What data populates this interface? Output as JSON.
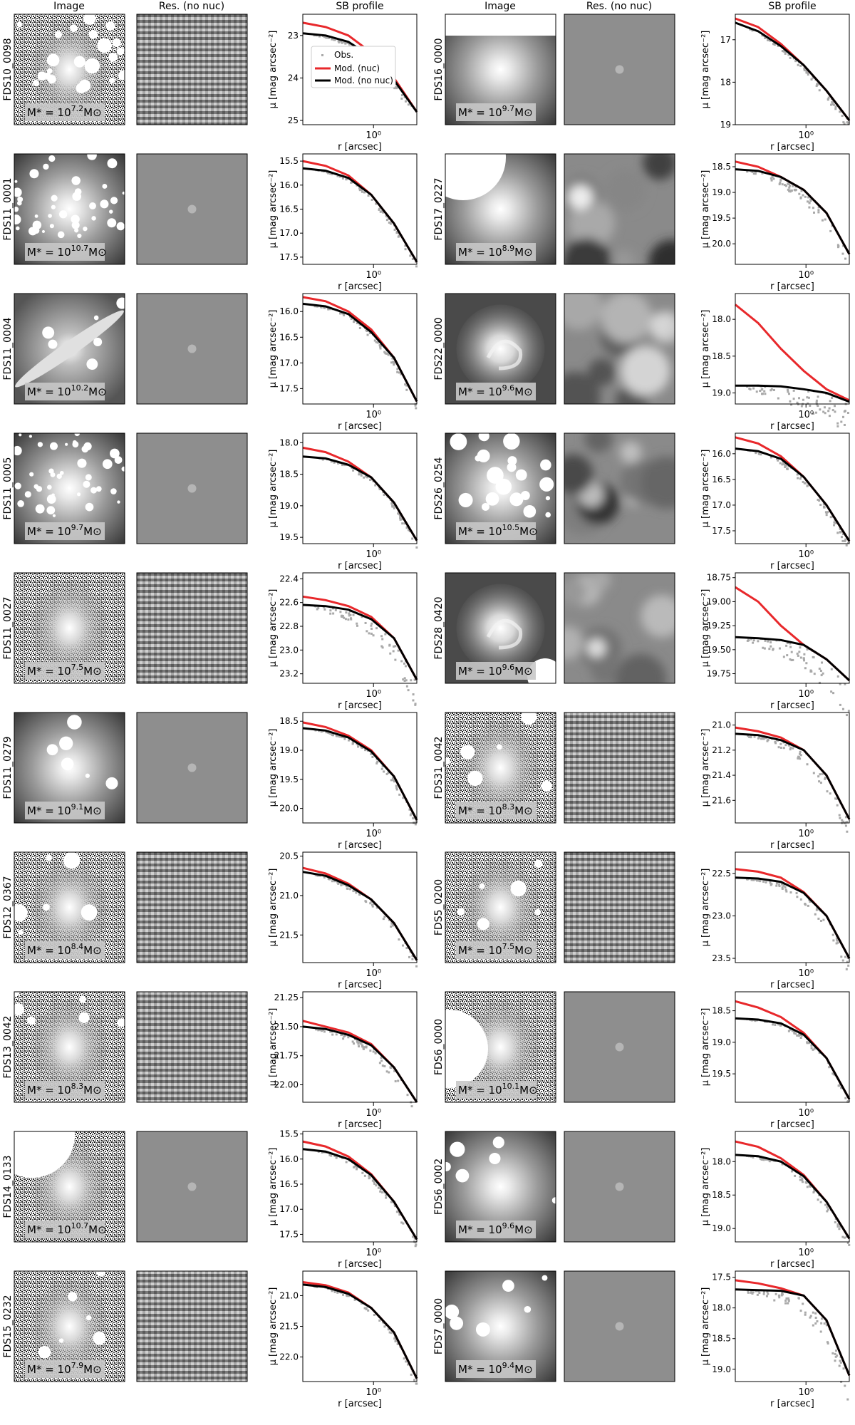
{
  "headers": [
    "Image",
    "Res. (no nuc)",
    "SB profile",
    "Image",
    "Res. (no nuc)",
    "SB profile"
  ],
  "axis_labels": {
    "xlabel": "r [arcsec]",
    "ylabel": "μ [mag arcsec⁻²]",
    "xtick": "10⁰"
  },
  "legend": {
    "obs": "Obs.",
    "nuc": "Mod. (nuc)",
    "nonuc": "Mod. (no nuc)"
  },
  "colors": {
    "obs": "#a9a9a9",
    "nuc": "#e8282b",
    "nonuc": "#000000"
  },
  "galaxies": [
    {
      "id": "FDS10_0098",
      "mass_prefix": "M* = 10",
      "mass_exp": "7.2",
      "mass_suffix": "M⊙",
      "texture": "noisy",
      "mask": "scattered",
      "res": "noisy"
    },
    {
      "id": "FDS16_0000",
      "mass_prefix": "M* = 10",
      "mass_exp": "9.7",
      "mass_suffix": "M⊙",
      "texture": "smooth",
      "mask": "band",
      "res": "smooth"
    },
    {
      "id": "FDS11_0001",
      "mass_prefix": "M* = 10",
      "mass_exp": "10.7",
      "mass_suffix": "M⊙",
      "texture": "smooth",
      "mask": "many",
      "res": "smooth"
    },
    {
      "id": "FDS17_0227",
      "mass_prefix": "M* = 10",
      "mass_exp": "8.9",
      "mass_suffix": "M⊙",
      "texture": "smooth",
      "mask": "bigcorner",
      "res": "blotchy"
    },
    {
      "id": "FDS11_0004",
      "mass_prefix": "M* = 10",
      "mass_exp": "10.2",
      "mass_suffix": "M⊙",
      "texture": "edgeon",
      "mask": "few",
      "res": "smooth"
    },
    {
      "id": "FDS22_0000",
      "mass_prefix": "M* = 10",
      "mass_exp": "9.6",
      "mass_suffix": "M⊙",
      "texture": "spiral",
      "mask": "none",
      "res": "blotchy"
    },
    {
      "id": "FDS11_0005",
      "mass_prefix": "M* = 10",
      "mass_exp": "9.7",
      "mass_suffix": "M⊙",
      "texture": "smooth",
      "mask": "many",
      "res": "smooth"
    },
    {
      "id": "FDS26_0254",
      "mass_prefix": "M* = 10",
      "mass_exp": "10.5",
      "mass_suffix": "M⊙",
      "texture": "smooth",
      "mask": "scattered",
      "res": "blotchy"
    },
    {
      "id": "FDS11_0027",
      "mass_prefix": "M* = 10",
      "mass_exp": "7.5",
      "mass_suffix": "M⊙",
      "texture": "noisy",
      "mask": "none",
      "res": "noisy"
    },
    {
      "id": "FDS28_0420",
      "mass_prefix": "M* = 10",
      "mass_exp": "9.6",
      "mass_suffix": "M⊙",
      "texture": "spiral",
      "mask": "corner",
      "res": "blotchy"
    },
    {
      "id": "FDS11_0279",
      "mass_prefix": "M* = 10",
      "mass_exp": "9.1",
      "mass_suffix": "M⊙",
      "texture": "smooth",
      "mask": "few",
      "res": "smooth"
    },
    {
      "id": "FDS31_0042",
      "mass_prefix": "M* = 10",
      "mass_exp": "8.3",
      "mass_suffix": "M⊙",
      "texture": "noisy",
      "mask": "few",
      "res": "noisy"
    },
    {
      "id": "FDS12_0367",
      "mass_prefix": "M* = 10",
      "mass_exp": "8.4",
      "mass_suffix": "M⊙",
      "texture": "noisy",
      "mask": "few",
      "res": "noisy"
    },
    {
      "id": "FDS5_0200",
      "mass_prefix": "M* = 10",
      "mass_exp": "7.5",
      "mass_suffix": "M⊙",
      "texture": "noisy",
      "mask": "few",
      "res": "noisy"
    },
    {
      "id": "FDS13_0042",
      "mass_prefix": "M* = 10",
      "mass_exp": "8.3",
      "mass_suffix": "M⊙",
      "texture": "noisy",
      "mask": "few",
      "res": "noisy"
    },
    {
      "id": "FDS6_0000",
      "mass_prefix": "M* = 10",
      "mass_exp": "10.1",
      "mass_suffix": "M⊙",
      "texture": "noisy",
      "mask": "bigleft",
      "res": "smooth"
    },
    {
      "id": "FDS14_0133",
      "mass_prefix": "M* = 10",
      "mass_exp": "10.7",
      "mass_suffix": "M⊙",
      "texture": "noisy",
      "mask": "bigcorner",
      "res": "smooth"
    },
    {
      "id": "FDS6_0002",
      "mass_prefix": "M* = 10",
      "mass_exp": "9.6",
      "mass_suffix": "M⊙",
      "texture": "smooth",
      "mask": "few",
      "res": "smooth"
    },
    {
      "id": "FDS15_0232",
      "mass_prefix": "M* = 10",
      "mass_exp": "7.9",
      "mass_suffix": "M⊙",
      "texture": "noisy",
      "mask": "few",
      "res": "noisy"
    },
    {
      "id": "FDS7_0000",
      "mass_prefix": "M* = 10",
      "mass_exp": "9.4",
      "mass_suffix": "M⊙",
      "texture": "smooth",
      "mask": "few",
      "res": "smooth"
    }
  ],
  "chart_data": [
    {
      "galaxy": "FDS10_0098",
      "type": "scatter",
      "x_scale": "log",
      "yticks": [
        "23",
        "24",
        "25"
      ],
      "ylim": [
        25.1,
        22.5
      ],
      "nuc": [
        22.7,
        22.8,
        23.0,
        23.4,
        24.0,
        24.8
      ],
      "nonuc": [
        22.95,
        23.0,
        23.15,
        23.5,
        24.05,
        24.8
      ],
      "obs_spread": 0.15,
      "legend": "center-left"
    },
    {
      "galaxy": "FDS16_0000",
      "type": "scatter",
      "x_scale": "log",
      "yticks": [
        "17",
        "18",
        "19"
      ],
      "ylim": [
        19.0,
        16.4
      ],
      "nuc": [
        16.5,
        16.7,
        17.1,
        17.6,
        18.2,
        18.9
      ],
      "nonuc": [
        16.6,
        16.8,
        17.15,
        17.6,
        18.2,
        18.9
      ],
      "obs_spread": 0.15
    },
    {
      "galaxy": "FDS11_0001",
      "type": "scatter",
      "x_scale": "log",
      "yticks": [
        "15.5",
        "16.0",
        "16.5",
        "17.0",
        "17.5"
      ],
      "ylim": [
        17.65,
        15.35
      ],
      "nuc": [
        15.5,
        15.6,
        15.8,
        16.2,
        16.8,
        17.6
      ],
      "nonuc": [
        15.65,
        15.7,
        15.85,
        16.2,
        16.8,
        17.6
      ],
      "obs_spread": 0.1
    },
    {
      "galaxy": "FDS17_0227",
      "type": "scatter",
      "x_scale": "log",
      "yticks": [
        "18.5",
        "19.0",
        "19.5",
        "20.0"
      ],
      "ylim": [
        20.4,
        18.25
      ],
      "nuc": [
        18.4,
        18.5,
        18.7,
        18.95,
        19.4,
        20.2
      ],
      "nonuc": [
        18.55,
        18.58,
        18.7,
        18.95,
        19.4,
        20.2
      ],
      "obs_spread": 0.25
    },
    {
      "galaxy": "FDS11_0004",
      "type": "scatter",
      "x_scale": "log",
      "yticks": [
        "16.0",
        "16.5",
        "17.0",
        "17.5"
      ],
      "ylim": [
        17.8,
        15.65
      ],
      "nuc": [
        15.72,
        15.8,
        16.0,
        16.35,
        16.9,
        17.75
      ],
      "nonuc": [
        15.85,
        15.9,
        16.05,
        16.4,
        16.9,
        17.75
      ],
      "obs_spread": 0.12
    },
    {
      "galaxy": "FDS22_0000",
      "type": "scatter",
      "x_scale": "log",
      "yticks": [
        "18.0",
        "18.5",
        "19.0"
      ],
      "ylim": [
        19.15,
        17.65
      ],
      "nuc": [
        17.8,
        18.05,
        18.4,
        18.7,
        18.95,
        19.1
      ],
      "nonuc": [
        18.9,
        18.9,
        18.91,
        18.95,
        19.0,
        19.12
      ],
      "obs_spread": 0.3
    },
    {
      "galaxy": "FDS11_0005",
      "type": "scatter",
      "x_scale": "log",
      "yticks": [
        "18.0",
        "18.5",
        "19.0",
        "19.5"
      ],
      "ylim": [
        19.6,
        17.85
      ],
      "nuc": [
        18.08,
        18.15,
        18.3,
        18.55,
        18.95,
        19.55
      ],
      "nonuc": [
        18.22,
        18.25,
        18.35,
        18.55,
        18.95,
        19.55
      ],
      "obs_spread": 0.08
    },
    {
      "galaxy": "FDS26_0254",
      "type": "scatter",
      "x_scale": "log",
      "yticks": [
        "16.0",
        "16.5",
        "17.0",
        "17.5"
      ],
      "ylim": [
        17.75,
        15.6
      ],
      "nuc": [
        15.68,
        15.8,
        16.05,
        16.45,
        17.0,
        17.7
      ],
      "nonuc": [
        15.9,
        15.95,
        16.1,
        16.45,
        17.0,
        17.7
      ],
      "obs_spread": 0.15
    },
    {
      "galaxy": "FDS11_0027",
      "type": "scatter",
      "x_scale": "log",
      "yticks": [
        "22.4",
        "22.6",
        "22.8",
        "23.0",
        "23.2"
      ],
      "ylim": [
        23.28,
        22.35
      ],
      "nuc": [
        22.55,
        22.58,
        22.63,
        22.72,
        22.9,
        23.25
      ],
      "nonuc": [
        22.62,
        22.63,
        22.66,
        22.74,
        22.9,
        23.25
      ],
      "obs_spread": 0.15
    },
    {
      "galaxy": "FDS28_0420",
      "type": "scatter",
      "x_scale": "log",
      "yticks": [
        "18.75",
        "19.00",
        "19.25",
        "19.50",
        "19.75"
      ],
      "ylim": [
        19.85,
        18.7
      ],
      "nuc": [
        18.85,
        19.0,
        19.25,
        19.45,
        19.6,
        19.82
      ],
      "nonuc": [
        19.37,
        19.38,
        19.4,
        19.45,
        19.6,
        19.82
      ],
      "obs_spread": 0.25
    },
    {
      "galaxy": "FDS11_0279",
      "type": "scatter",
      "x_scale": "log",
      "yticks": [
        "18.5",
        "19.0",
        "19.5",
        "20.0"
      ],
      "ylim": [
        20.25,
        18.35
      ],
      "nuc": [
        18.52,
        18.6,
        18.75,
        19.0,
        19.45,
        20.2
      ],
      "nonuc": [
        18.62,
        18.66,
        18.78,
        19.02,
        19.45,
        20.2
      ],
      "obs_spread": 0.1
    },
    {
      "galaxy": "FDS31_0042",
      "type": "scatter",
      "x_scale": "log",
      "yticks": [
        "21.0",
        "21.2",
        "21.4",
        "21.6"
      ],
      "ylim": [
        21.78,
        20.9
      ],
      "nuc": [
        21.02,
        21.05,
        21.1,
        21.2,
        21.4,
        21.75
      ],
      "nonuc": [
        21.07,
        21.08,
        21.12,
        21.2,
        21.4,
        21.75
      ],
      "obs_spread": 0.1
    },
    {
      "galaxy": "FDS12_0367",
      "type": "scatter",
      "x_scale": "log",
      "yticks": [
        "20.5",
        "21.0",
        "21.5"
      ],
      "ylim": [
        21.85,
        20.45
      ],
      "nuc": [
        20.65,
        20.72,
        20.85,
        21.05,
        21.35,
        21.82
      ],
      "nonuc": [
        20.7,
        20.75,
        20.87,
        21.05,
        21.35,
        21.82
      ],
      "obs_spread": 0.08
    },
    {
      "galaxy": "FDS5_0200",
      "type": "scatter",
      "x_scale": "log",
      "yticks": [
        "22.5",
        "23.0",
        "23.5"
      ],
      "ylim": [
        23.55,
        22.25
      ],
      "nuc": [
        22.45,
        22.48,
        22.55,
        22.72,
        23.0,
        23.5
      ],
      "nonuc": [
        22.55,
        22.56,
        22.6,
        22.73,
        23.0,
        23.5
      ],
      "obs_spread": 0.12
    },
    {
      "galaxy": "FDS13_0042",
      "type": "scatter",
      "x_scale": "log",
      "yticks": [
        "21.25",
        "21.50",
        "21.75",
        "22.00"
      ],
      "ylim": [
        22.15,
        21.2
      ],
      "nuc": [
        21.45,
        21.5,
        21.55,
        21.65,
        21.85,
        22.15
      ],
      "nonuc": [
        21.5,
        21.52,
        21.57,
        21.66,
        21.85,
        22.15
      ],
      "obs_spread": 0.08
    },
    {
      "galaxy": "FDS6_0000",
      "type": "scatter",
      "x_scale": "log",
      "yticks": [
        "18.5",
        "19.0",
        "19.5"
      ],
      "ylim": [
        19.95,
        18.2
      ],
      "nuc": [
        18.35,
        18.45,
        18.6,
        18.85,
        19.25,
        19.9
      ],
      "nonuc": [
        18.62,
        18.64,
        18.7,
        18.88,
        19.25,
        19.9
      ],
      "obs_spread": 0.08
    },
    {
      "galaxy": "FDS14_0133",
      "type": "scatter",
      "x_scale": "log",
      "yticks": [
        "15.5",
        "16.0",
        "16.5",
        "17.0",
        "17.5"
      ],
      "ylim": [
        17.65,
        15.45
      ],
      "nuc": [
        15.65,
        15.75,
        15.95,
        16.3,
        16.85,
        17.6
      ],
      "nonuc": [
        15.8,
        15.85,
        16.0,
        16.32,
        16.85,
        17.6
      ],
      "obs_spread": 0.12
    },
    {
      "galaxy": "FDS6_0002",
      "type": "scatter",
      "x_scale": "log",
      "yticks": [
        "18.0",
        "18.5",
        "19.0"
      ],
      "ylim": [
        19.2,
        17.55
      ],
      "nuc": [
        17.7,
        17.78,
        17.95,
        18.2,
        18.6,
        19.15
      ],
      "nonuc": [
        17.9,
        17.92,
        18.0,
        18.22,
        18.6,
        19.15
      ],
      "obs_spread": 0.1
    },
    {
      "galaxy": "FDS15_0232",
      "type": "scatter",
      "x_scale": "log",
      "yticks": [
        "21.0",
        "21.5",
        "22.0"
      ],
      "ylim": [
        22.4,
        20.6
      ],
      "nuc": [
        20.78,
        20.83,
        20.95,
        21.2,
        21.6,
        22.35
      ],
      "nonuc": [
        20.82,
        20.86,
        20.97,
        21.2,
        21.6,
        22.35
      ],
      "obs_spread": 0.08
    },
    {
      "galaxy": "FDS7_0000",
      "type": "scatter",
      "x_scale": "log",
      "yticks": [
        "17.5",
        "18.0",
        "18.5",
        "19.0"
      ],
      "ylim": [
        19.2,
        17.4
      ],
      "nuc": [
        17.55,
        17.6,
        17.68,
        17.8,
        18.2,
        19.1
      ],
      "nonuc": [
        17.7,
        17.71,
        17.72,
        17.8,
        18.2,
        19.1
      ],
      "obs_spread": 0.3
    }
  ]
}
